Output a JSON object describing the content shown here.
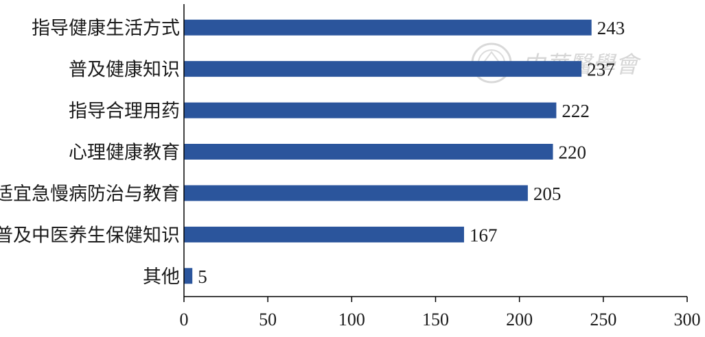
{
  "chart_data": {
    "type": "bar",
    "orientation": "horizontal",
    "categories": [
      "指导健康生活方式",
      "普及健康知识",
      "指导合理用药",
      "心理健康教育",
      "适宜急慢病防治与教育",
      "普及中医养生保健知识",
      "其他"
    ],
    "values": [
      243,
      237,
      222,
      220,
      205,
      167,
      5
    ],
    "value_labels": [
      "243",
      "237",
      "222",
      "220",
      "205",
      "167",
      "5"
    ],
    "xlim": [
      0,
      300
    ],
    "x_ticks": [
      0,
      50,
      100,
      150,
      200,
      250,
      300
    ],
    "x_tick_labels": [
      "0",
      "50",
      "100",
      "150",
      "200",
      "250",
      "300"
    ],
    "grid": false,
    "bar_color": "#2B559C",
    "axis_color": "#000000"
  },
  "watermark": {
    "text": "中華醫學會",
    "color": "#d4d4d4"
  }
}
